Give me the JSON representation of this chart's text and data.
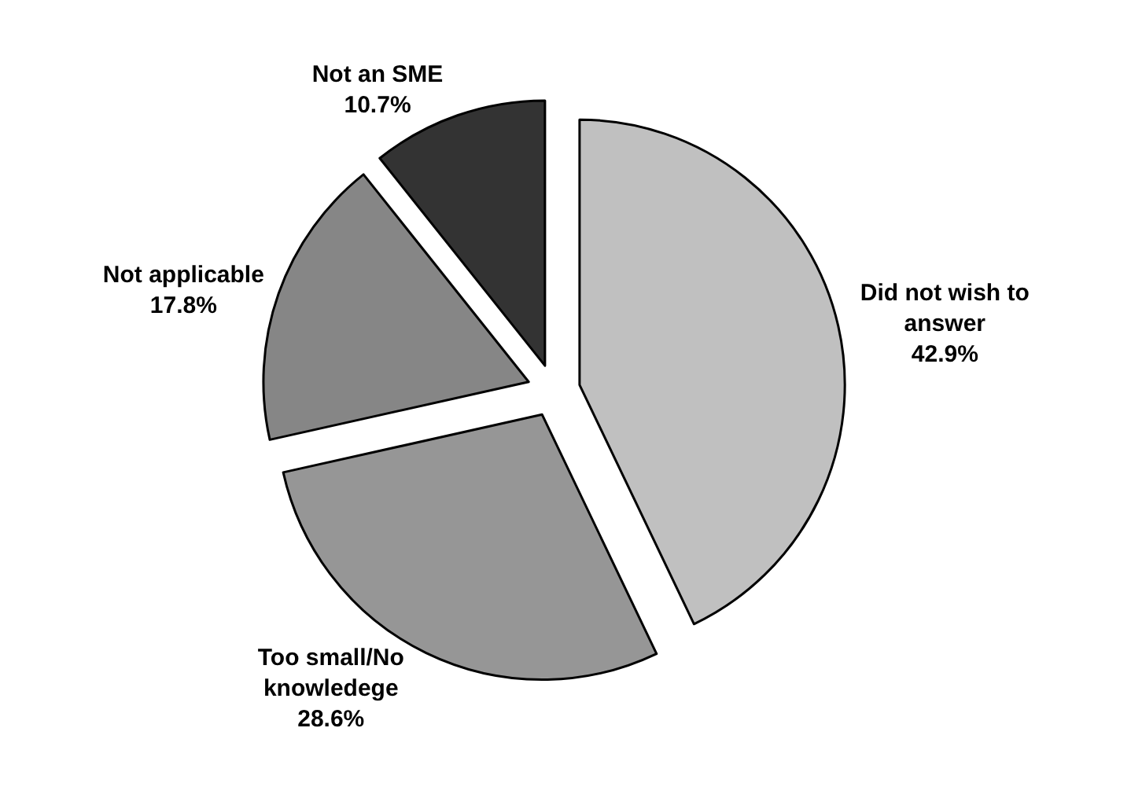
{
  "chart_data": {
    "type": "pie",
    "categories": [
      "Did not wish to answer",
      "Too small/No knowledege",
      "Not applicable",
      "Not an SME"
    ],
    "values": [
      42.9,
      28.6,
      17.8,
      10.7
    ],
    "colors": [
      "#c0c0c0",
      "#969696",
      "#868686",
      "#333333"
    ],
    "value_labels": [
      "42.9%",
      "28.6%",
      "17.8%",
      "10.7%"
    ],
    "legend": false
  }
}
